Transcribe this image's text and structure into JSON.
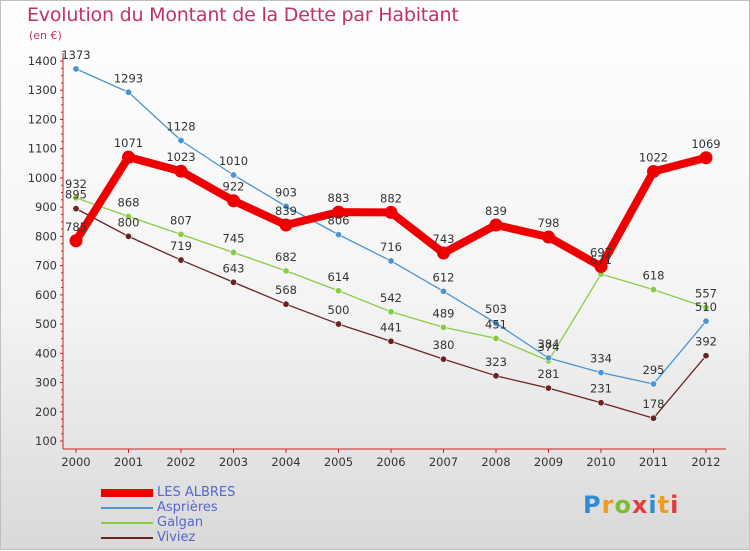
{
  "title": "Evolution du Montant de la Dette par Habitant",
  "unit": "(en €)",
  "logo": {
    "text": "Proxiti",
    "colors": [
      "#2a8fd6",
      "#f29a1e",
      "#7cbf2e",
      "#e23c3c"
    ]
  },
  "chart_data": {
    "type": "line",
    "title": "Evolution du Montant de la Dette par Habitant",
    "ylabel": "(en €)",
    "xlabel": "",
    "ylim": [
      100,
      1400
    ],
    "yticks": [
      100,
      200,
      300,
      400,
      500,
      600,
      700,
      800,
      900,
      1000,
      1100,
      1200,
      1300,
      1400
    ],
    "categories": [
      "2000",
      "2001",
      "2002",
      "2003",
      "2004",
      "2005",
      "2006",
      "2007",
      "2008",
      "2009",
      "2010",
      "2011",
      "2012"
    ],
    "grid": false,
    "legend_position": "bottom-left",
    "series": [
      {
        "name": "LES ALBRES",
        "color": "#ee0000",
        "values": [
          785,
          1071,
          1023,
          922,
          839,
          883,
          882,
          743,
          839,
          798,
          697,
          1022,
          1069
        ]
      },
      {
        "name": "Asprières",
        "color": "#4a94cf",
        "values": [
          1373,
          1293,
          1128,
          1010,
          903,
          806,
          716,
          612,
          503,
          384,
          334,
          295,
          510
        ]
      },
      {
        "name": "Galgan",
        "color": "#88cc44",
        "values": [
          932,
          868,
          807,
          745,
          682,
          614,
          542,
          489,
          451,
          374,
          671,
          618,
          557
        ]
      },
      {
        "name": "Viviez",
        "color": "#6b2222",
        "values": [
          895,
          800,
          719,
          643,
          568,
          500,
          441,
          380,
          323,
          281,
          231,
          178,
          392
        ]
      }
    ]
  }
}
